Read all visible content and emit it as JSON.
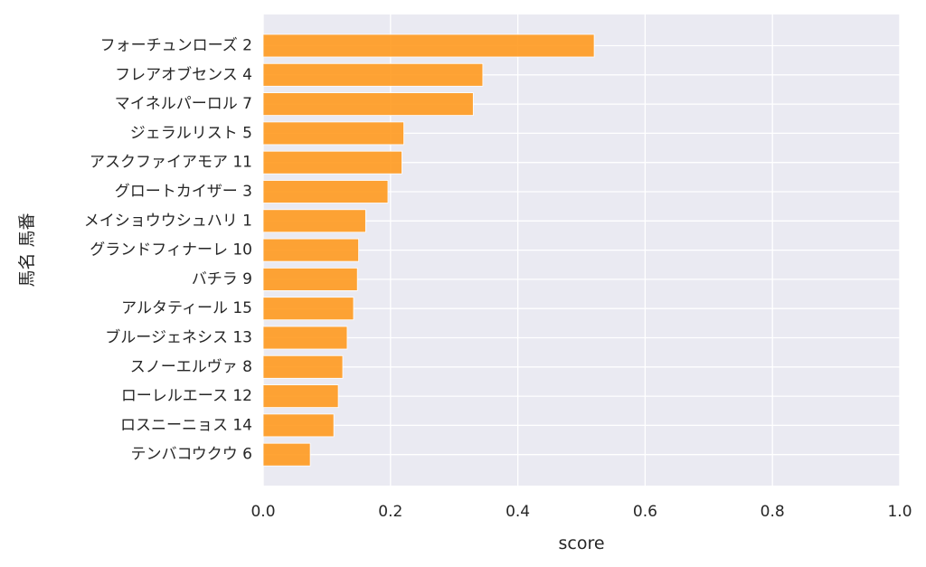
{
  "chart_data": {
    "type": "bar",
    "orientation": "horizontal",
    "categories": [
      "フォーチュンローズ 2",
      "フレアオブセンス 4",
      "マイネルパーロル 7",
      "ジェラルリスト 5",
      "アスクファイアモア 11",
      "グロートカイザー 3",
      "メイショウウシュハリ 1",
      "グランドフィナーレ 10",
      "バチラ 9",
      "アルタティール 15",
      "ブルージェネシス 13",
      "スノーエルヴァ 8",
      "ローレルエース 12",
      "ロスニーニョス 14",
      "テンバコウクウ 6"
    ],
    "values": [
      0.52,
      0.345,
      0.33,
      0.221,
      0.218,
      0.196,
      0.161,
      0.15,
      0.148,
      0.142,
      0.132,
      0.125,
      0.118,
      0.111,
      0.074
    ],
    "xlabel": "score",
    "ylabel": "馬名 馬番",
    "xlim": [
      0.0,
      1.0
    ],
    "xticks": [
      "0.0",
      "0.2",
      "0.4",
      "0.6",
      "0.8",
      "1.0"
    ],
    "grid": true,
    "bar_color": "#ff9a1f",
    "background_color": "#eaeaf2"
  }
}
